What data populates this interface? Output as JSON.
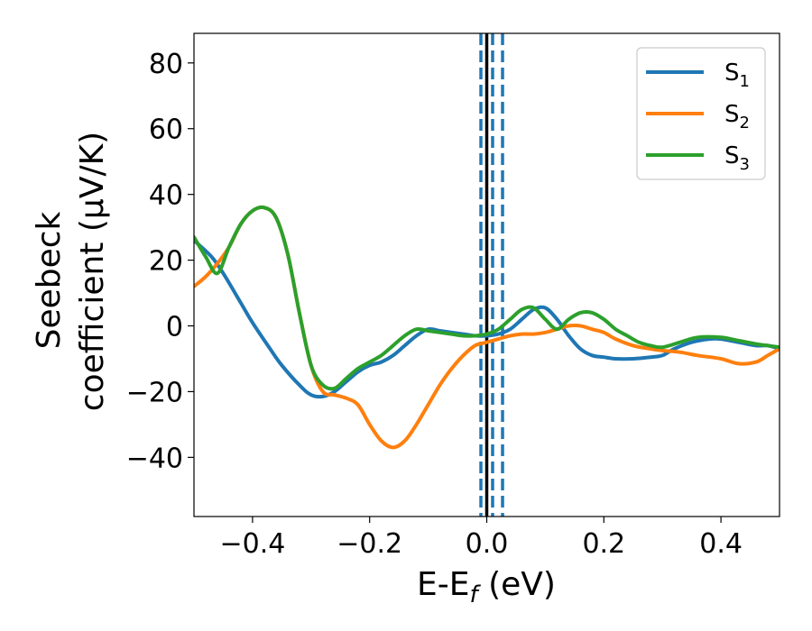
{
  "chart_data": {
    "type": "line",
    "xlabel": "E-E",
    "xlabel_sub": "f",
    "xlabel_unit": " (eV)",
    "ylabel_line1": "Seebeck",
    "ylabel_line2": "coefficient  (μV/K)",
    "xlim": [
      -0.5,
      0.5
    ],
    "ylim": [
      -58,
      89
    ],
    "xticks": [
      -0.4,
      -0.2,
      0.0,
      0.2,
      0.4
    ],
    "xtick_labels": [
      "−0.4",
      "−0.2",
      "0.0",
      "0.2",
      "0.4"
    ],
    "yticks": [
      -40,
      -20,
      0,
      20,
      40,
      60,
      80
    ],
    "ytick_labels": [
      "−40",
      "−20",
      "0",
      "20",
      "40",
      "60",
      "80"
    ],
    "grid": false,
    "legend_position": "top-right",
    "vlines": [
      {
        "x": 0.0,
        "color": "#000000",
        "style": "solid"
      },
      {
        "x": -0.01,
        "color": "#1f77b4",
        "style": "dashed"
      },
      {
        "x": 0.01,
        "color": "#1f77b4",
        "style": "dashed"
      },
      {
        "x": 0.027,
        "color": "#1f77b4",
        "style": "dashed"
      }
    ],
    "series": [
      {
        "name": "S",
        "sub": "1",
        "color": "#1f77b4",
        "x": [
          -0.5,
          -0.47,
          -0.45,
          -0.42,
          -0.4,
          -0.37,
          -0.35,
          -0.32,
          -0.3,
          -0.28,
          -0.26,
          -0.24,
          -0.22,
          -0.2,
          -0.18,
          -0.16,
          -0.14,
          -0.12,
          -0.1,
          -0.08,
          -0.06,
          -0.04,
          -0.02,
          0.0,
          0.02,
          0.04,
          0.06,
          0.08,
          0.1,
          0.12,
          0.14,
          0.16,
          0.18,
          0.2,
          0.22,
          0.25,
          0.28,
          0.3,
          0.32,
          0.35,
          0.38,
          0.4,
          0.43,
          0.46,
          0.48,
          0.5
        ],
        "y": [
          26,
          21,
          16,
          7,
          1,
          -7,
          -12,
          -18,
          -21,
          -21.5,
          -20,
          -17,
          -14,
          -12,
          -11,
          -9,
          -6,
          -3,
          -1,
          -1.5,
          -2,
          -2.5,
          -3,
          -3,
          -2.5,
          -1,
          2,
          5,
          5.5,
          2,
          -3,
          -7,
          -9,
          -9.5,
          -10,
          -10,
          -9.5,
          -9,
          -7,
          -5,
          -4,
          -4,
          -5,
          -6,
          -6,
          -7
        ]
      },
      {
        "name": "S",
        "sub": "2",
        "color": "#ff7f0e",
        "x": [
          -0.5,
          -0.48,
          -0.46,
          -0.44,
          -0.42,
          -0.4,
          -0.38,
          -0.36,
          -0.34,
          -0.32,
          -0.3,
          -0.28,
          -0.26,
          -0.24,
          -0.22,
          -0.2,
          -0.18,
          -0.16,
          -0.14,
          -0.12,
          -0.1,
          -0.08,
          -0.06,
          -0.04,
          -0.02,
          0.0,
          0.02,
          0.04,
          0.06,
          0.08,
          0.1,
          0.12,
          0.14,
          0.16,
          0.18,
          0.2,
          0.22,
          0.25,
          0.28,
          0.3,
          0.33,
          0.36,
          0.4,
          0.43,
          0.46,
          0.48,
          0.5
        ],
        "y": [
          12,
          15,
          19,
          24,
          31,
          35,
          36,
          33,
          22,
          4,
          -12,
          -20,
          -21,
          -22,
          -24,
          -30,
          -35,
          -37,
          -35,
          -30,
          -24,
          -18,
          -13,
          -9,
          -6,
          -5,
          -4,
          -3,
          -2.5,
          -2.5,
          -2,
          -1,
          0,
          0,
          -1,
          -2,
          -4,
          -6,
          -7,
          -7.5,
          -8,
          -9,
          -10,
          -11.5,
          -11,
          -9,
          -7
        ]
      },
      {
        "name": "S",
        "sub": "3",
        "color": "#2ca02c",
        "x": [
          -0.5,
          -0.48,
          -0.46,
          -0.44,
          -0.42,
          -0.4,
          -0.38,
          -0.36,
          -0.34,
          -0.32,
          -0.3,
          -0.28,
          -0.26,
          -0.24,
          -0.22,
          -0.2,
          -0.18,
          -0.16,
          -0.14,
          -0.12,
          -0.1,
          -0.08,
          -0.06,
          -0.04,
          -0.02,
          0.0,
          0.02,
          0.04,
          0.06,
          0.08,
          0.1,
          0.12,
          0.14,
          0.16,
          0.18,
          0.2,
          0.22,
          0.24,
          0.26,
          0.28,
          0.3,
          0.33,
          0.36,
          0.4,
          0.43,
          0.46,
          0.48,
          0.5
        ],
        "y": [
          27,
          21,
          16,
          24,
          31,
          35,
          36,
          33,
          22,
          4,
          -12,
          -18,
          -19,
          -16,
          -13,
          -11,
          -9,
          -6,
          -3,
          -1,
          -1.5,
          -2,
          -2.5,
          -3,
          -3,
          -2.5,
          -1,
          2,
          5,
          5.5,
          2,
          -1,
          2,
          4,
          4,
          2,
          -1,
          -3,
          -5,
          -6,
          -6.5,
          -5,
          -3.5,
          -3.5,
          -4.5,
          -5.5,
          -6,
          -6.5
        ]
      }
    ]
  }
}
